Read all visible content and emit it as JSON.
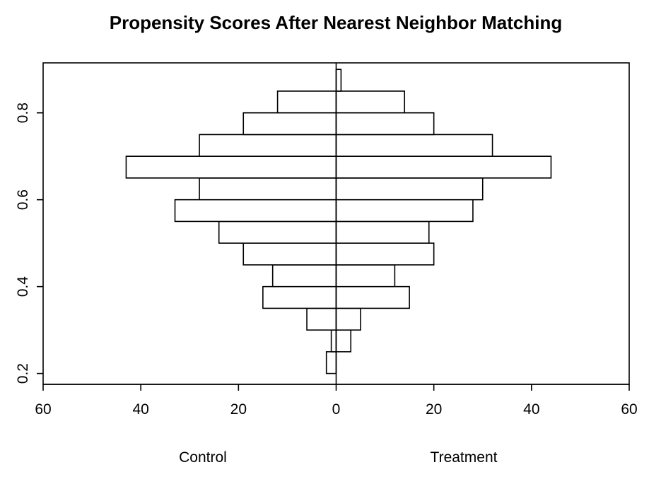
{
  "chart_data": {
    "type": "bar",
    "orientation": "horizontal-back-to-back",
    "title": "Propensity Scores After Nearest Neighbor Matching",
    "groups": {
      "left": "Control",
      "right": "Treatment"
    },
    "bin_width": 0.05,
    "bins": [
      {
        "low": 0.2,
        "high": 0.25
      },
      {
        "low": 0.25,
        "high": 0.3
      },
      {
        "low": 0.3,
        "high": 0.35
      },
      {
        "low": 0.35,
        "high": 0.4
      },
      {
        "low": 0.4,
        "high": 0.45
      },
      {
        "low": 0.45,
        "high": 0.5
      },
      {
        "low": 0.5,
        "high": 0.55
      },
      {
        "low": 0.55,
        "high": 0.6
      },
      {
        "low": 0.6,
        "high": 0.65
      },
      {
        "low": 0.65,
        "high": 0.7
      },
      {
        "low": 0.7,
        "high": 0.75
      },
      {
        "low": 0.75,
        "high": 0.8
      },
      {
        "low": 0.8,
        "high": 0.85
      },
      {
        "low": 0.85,
        "high": 0.9
      }
    ],
    "series": [
      {
        "name": "Control",
        "side": "left",
        "values": [
          2,
          1,
          6,
          15,
          13,
          19,
          24,
          33,
          28,
          43,
          28,
          19,
          12,
          0
        ]
      },
      {
        "name": "Treatment",
        "side": "right",
        "values": [
          0,
          3,
          5,
          15,
          12,
          20,
          19,
          28,
          30,
          44,
          32,
          20,
          14,
          1
        ]
      }
    ],
    "x_ticks": [
      "60",
      "40",
      "20",
      "0",
      "20",
      "40",
      "60"
    ],
    "x_tick_values": [
      -60,
      -40,
      -20,
      0,
      20,
      40,
      60
    ],
    "xlim": [
      -60,
      60
    ],
    "y_ticks": [
      "0.2",
      "0.4",
      "0.6",
      "0.8"
    ],
    "y_tick_values": [
      0.2,
      0.4,
      0.6,
      0.8
    ],
    "ylim": [
      0.175,
      0.915
    ],
    "grid": false,
    "legend": "none"
  }
}
